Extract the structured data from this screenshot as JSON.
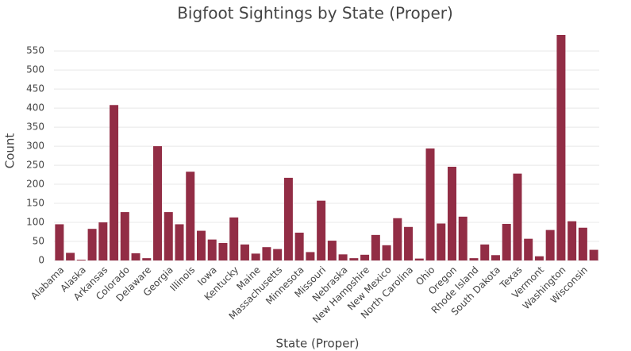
{
  "chart_data": {
    "type": "bar",
    "title": "Bigfoot Sightings by State (Proper)",
    "x_label": "State (Proper)",
    "y_label": "Count",
    "categories": [
      "Alabama",
      null,
      "Alaska",
      null,
      "Arkansas",
      null,
      "Colorado",
      null,
      "Delaware",
      null,
      "Georgia",
      null,
      "Illinois",
      null,
      "Iowa",
      null,
      "Kentucky",
      null,
      "Maine",
      null,
      "Massachusetts",
      null,
      "Minnesota",
      null,
      "Missouri",
      null,
      "Nebraska",
      null,
      "New Hampshire",
      null,
      "New Mexico",
      null,
      "North Carolina",
      null,
      "Ohio",
      null,
      "Oregon",
      null,
      "Rhode Island",
      null,
      "South Dakota",
      null,
      "Texas",
      null,
      "Vermont",
      null,
      "Washington",
      null,
      "Wisconsin",
      null
    ],
    "values": [
      95,
      20,
      2,
      83,
      100,
      408,
      127,
      19,
      6,
      300,
      127,
      95,
      233,
      78,
      55,
      46,
      113,
      42,
      18,
      35,
      30,
      217,
      73,
      22,
      157,
      52,
      16,
      6,
      15,
      67,
      40,
      111,
      88,
      5,
      294,
      97,
      246,
      115,
      6,
      42,
      14,
      96,
      228,
      57,
      11,
      80,
      592,
      103,
      86,
      28
    ],
    "color": "#922d45",
    "ylim": [
      0,
      592
    ],
    "yticks": [
      0,
      50,
      100,
      150,
      200,
      250,
      300,
      350,
      400,
      450,
      500,
      550
    ],
    "grid": true
  }
}
